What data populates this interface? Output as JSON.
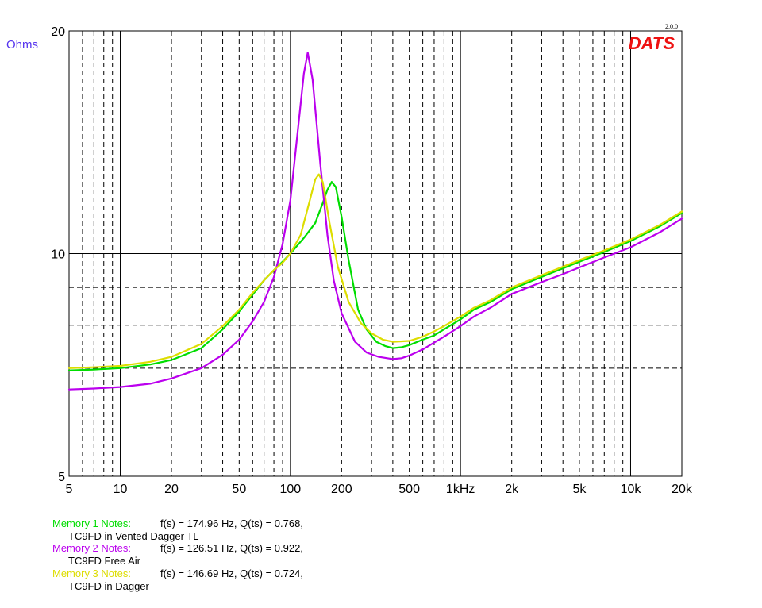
{
  "chart_data": {
    "type": "line",
    "ylabel": "Ohms",
    "y_scale": "log",
    "x_scale": "log",
    "ylim": [
      5,
      20
    ],
    "xlim": [
      5,
      20000
    ],
    "y_ticks": [
      {
        "value": 20,
        "label": "20"
      },
      {
        "value": 10,
        "label": "10"
      },
      {
        "value": 5,
        "label": "5"
      }
    ],
    "y_minor_grid": [
      7,
      8,
      9
    ],
    "x_ticks": [
      {
        "value": 5,
        "label": "5"
      },
      {
        "value": 10,
        "label": "10"
      },
      {
        "value": 20,
        "label": "20"
      },
      {
        "value": 50,
        "label": "50"
      },
      {
        "value": 100,
        "label": "100"
      },
      {
        "value": 200,
        "label": "200"
      },
      {
        "value": 500,
        "label": "500"
      },
      {
        "value": 1000,
        "label": "1kHz"
      },
      {
        "value": 2000,
        "label": "2k"
      },
      {
        "value": 5000,
        "label": "5k"
      },
      {
        "value": 10000,
        "label": "10k"
      },
      {
        "value": 20000,
        "label": "20k"
      }
    ],
    "grid": true,
    "brand": "DATS",
    "version": "2.0.0",
    "series": [
      {
        "color": "#00dd00",
        "points": [
          [
            5,
            6.95
          ],
          [
            7,
            6.97
          ],
          [
            10,
            7.0
          ],
          [
            15,
            7.08
          ],
          [
            20,
            7.18
          ],
          [
            30,
            7.45
          ],
          [
            40,
            7.9
          ],
          [
            50,
            8.35
          ],
          [
            60,
            8.8
          ],
          [
            70,
            9.2
          ],
          [
            80,
            9.5
          ],
          [
            90,
            9.75
          ],
          [
            100,
            10.0
          ],
          [
            120,
            10.5
          ],
          [
            140,
            11.0
          ],
          [
            155,
            11.7
          ],
          [
            165,
            12.2
          ],
          [
            175,
            12.5
          ],
          [
            185,
            12.3
          ],
          [
            200,
            11.2
          ],
          [
            220,
            9.8
          ],
          [
            250,
            8.4
          ],
          [
            280,
            7.9
          ],
          [
            320,
            7.6
          ],
          [
            360,
            7.5
          ],
          [
            400,
            7.45
          ],
          [
            450,
            7.47
          ],
          [
            500,
            7.52
          ],
          [
            600,
            7.65
          ],
          [
            700,
            7.75
          ],
          [
            800,
            7.9
          ],
          [
            1000,
            8.15
          ],
          [
            1200,
            8.4
          ],
          [
            1500,
            8.6
          ],
          [
            2000,
            8.95
          ],
          [
            3000,
            9.3
          ],
          [
            4000,
            9.55
          ],
          [
            5000,
            9.75
          ],
          [
            7000,
            10.05
          ],
          [
            10000,
            10.4
          ],
          [
            15000,
            10.9
          ],
          [
            20000,
            11.35
          ]
        ]
      },
      {
        "color": "#bb00ee",
        "points": [
          [
            5,
            6.55
          ],
          [
            7,
            6.57
          ],
          [
            10,
            6.6
          ],
          [
            15,
            6.67
          ],
          [
            20,
            6.78
          ],
          [
            30,
            7.0
          ],
          [
            40,
            7.3
          ],
          [
            50,
            7.65
          ],
          [
            60,
            8.1
          ],
          [
            70,
            8.6
          ],
          [
            80,
            9.3
          ],
          [
            90,
            10.3
          ],
          [
            100,
            11.8
          ],
          [
            110,
            14.5
          ],
          [
            120,
            17.5
          ],
          [
            126.5,
            18.7
          ],
          [
            135,
            17.2
          ],
          [
            150,
            13.2
          ],
          [
            165,
            10.6
          ],
          [
            180,
            9.2
          ],
          [
            200,
            8.3
          ],
          [
            240,
            7.6
          ],
          [
            280,
            7.35
          ],
          [
            330,
            7.25
          ],
          [
            400,
            7.2
          ],
          [
            450,
            7.22
          ],
          [
            500,
            7.28
          ],
          [
            600,
            7.42
          ],
          [
            700,
            7.58
          ],
          [
            800,
            7.72
          ],
          [
            1000,
            7.98
          ],
          [
            1200,
            8.22
          ],
          [
            1500,
            8.45
          ],
          [
            2000,
            8.82
          ],
          [
            3000,
            9.15
          ],
          [
            4000,
            9.38
          ],
          [
            5000,
            9.58
          ],
          [
            7000,
            9.88
          ],
          [
            10000,
            10.2
          ],
          [
            15000,
            10.7
          ],
          [
            20000,
            11.15
          ]
        ]
      },
      {
        "color": "#dddd00",
        "points": [
          [
            5,
            7.0
          ],
          [
            7,
            7.02
          ],
          [
            10,
            7.05
          ],
          [
            15,
            7.14
          ],
          [
            20,
            7.25
          ],
          [
            30,
            7.55
          ],
          [
            40,
            7.98
          ],
          [
            50,
            8.4
          ],
          [
            60,
            8.85
          ],
          [
            70,
            9.2
          ],
          [
            80,
            9.5
          ],
          [
            90,
            9.72
          ],
          [
            100,
            10.0
          ],
          [
            115,
            10.6
          ],
          [
            130,
            11.8
          ],
          [
            140,
            12.6
          ],
          [
            147,
            12.8
          ],
          [
            155,
            12.5
          ],
          [
            170,
            11.0
          ],
          [
            190,
            9.6
          ],
          [
            220,
            8.6
          ],
          [
            260,
            8.05
          ],
          [
            300,
            7.8
          ],
          [
            350,
            7.65
          ],
          [
            400,
            7.6
          ],
          [
            500,
            7.62
          ],
          [
            600,
            7.72
          ],
          [
            700,
            7.85
          ],
          [
            800,
            7.98
          ],
          [
            1000,
            8.22
          ],
          [
            1200,
            8.45
          ],
          [
            1500,
            8.65
          ],
          [
            2000,
            9.0
          ],
          [
            3000,
            9.35
          ],
          [
            4000,
            9.6
          ],
          [
            5000,
            9.8
          ],
          [
            7000,
            10.1
          ],
          [
            10000,
            10.45
          ],
          [
            15000,
            10.95
          ],
          [
            20000,
            11.4
          ]
        ]
      }
    ]
  },
  "notes": [
    {
      "label": "Memory 1 Notes:",
      "params": "f(s) = 174.96 Hz, Q(ts) = 0.768,",
      "desc": "TC9FD in Vented Dagger TL",
      "color": "#00dd00"
    },
    {
      "label": "Memory 2 Notes:",
      "params": "f(s) = 126.51 Hz, Q(ts) = 0.922,",
      "desc": "TC9FD Free Air",
      "color": "#bb00ee"
    },
    {
      "label": "Memory 3 Notes:",
      "params": "f(s) = 146.69 Hz, Q(ts) = 0.724,",
      "desc": "TC9FD in Dagger",
      "color": "#dddd00"
    }
  ],
  "colors": {
    "ylabel": "#5533ee",
    "brand": "#ee1111",
    "grid_major": "#000000",
    "grid_minor": "#000000"
  }
}
